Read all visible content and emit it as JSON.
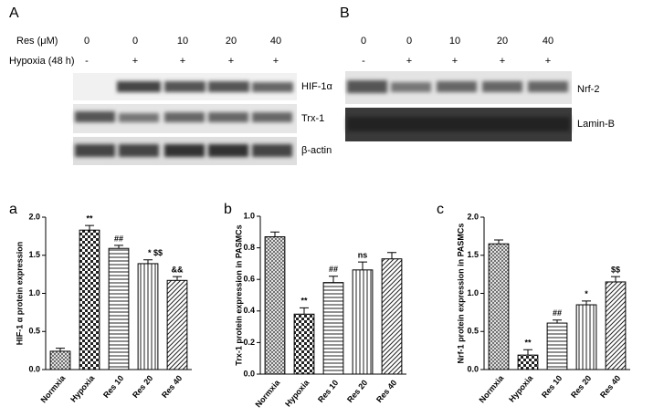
{
  "blots": {
    "A": {
      "letter": "A",
      "dose_label": "Res (μM)",
      "doses": [
        "0",
        "0",
        "10",
        "20",
        "40"
      ],
      "hypoxia_label": "Hypoxia (48 h)",
      "hypoxia": [
        "-",
        "+",
        "+",
        "+",
        "+"
      ],
      "bands": [
        "HIF-1α",
        "Trx-1",
        "β-actin"
      ]
    },
    "B": {
      "letter": "B",
      "doses": [
        "0",
        "0",
        "10",
        "20",
        "40"
      ],
      "hypoxia": [
        "-",
        "+",
        "+",
        "+",
        "+"
      ],
      "bands": [
        "Nrf-2",
        "Lamin-B"
      ]
    }
  },
  "chart_data": [
    {
      "type": "bar",
      "panel": "a",
      "ylabel": "HIF-1 α  protein expression",
      "categories": [
        "Normxia",
        "Hypoxia",
        "Res 10",
        "Res 20",
        "Res 40"
      ],
      "values": [
        0.24,
        1.83,
        1.59,
        1.39,
        1.17
      ],
      "errors": [
        0.04,
        0.06,
        0.04,
        0.05,
        0.05
      ],
      "annotations": [
        null,
        "**",
        "##",
        "* $$",
        "&&"
      ],
      "ylim": [
        0,
        2.0
      ],
      "yticks": [
        {
          "value": 0,
          "label": "0.0"
        },
        0.5,
        {
          "value": 1.0,
          "label": "1.0"
        },
        1.5,
        {
          "value": 2.0,
          "label": "2.0"
        }
      ]
    },
    {
      "type": "bar",
      "panel": "b",
      "ylabel": "Trx-1 protein expression in PASMCs",
      "categories": [
        "Normxia",
        "Hypoxia",
        "Res 10",
        "Res 20",
        "Res 40"
      ],
      "values": [
        0.87,
        0.38,
        0.58,
        0.66,
        0.73
      ],
      "errors": [
        0.03,
        0.04,
        0.04,
        0.05,
        0.04
      ],
      "annotations": [
        null,
        "**",
        "##",
        "ns",
        null
      ],
      "ylim": [
        0,
        1.0
      ],
      "yticks": [
        {
          "value": 0,
          "label": "0.0"
        },
        0.2,
        0.4,
        0.6,
        0.8,
        {
          "value": 1.0,
          "label": "1.0"
        }
      ]
    },
    {
      "type": "bar",
      "panel": "c",
      "ylabel": "Nrf-1 protein expression in PASMCs",
      "categories": [
        "Normxia",
        "Hypoxia",
        "Res 10",
        "Res 20",
        "Res 40"
      ],
      "values": [
        1.65,
        0.19,
        0.61,
        0.85,
        1.15
      ],
      "errors": [
        0.05,
        0.07,
        0.04,
        0.05,
        0.07
      ],
      "annotations": [
        null,
        "**",
        "##",
        "*",
        "$$"
      ],
      "ylim": [
        0,
        2.0
      ],
      "yticks": [
        {
          "value": 0,
          "label": "0.0"
        },
        0.5,
        {
          "value": 1.0,
          "label": "1.0"
        },
        1.5,
        {
          "value": 2.0,
          "label": "2.0"
        }
      ]
    }
  ]
}
